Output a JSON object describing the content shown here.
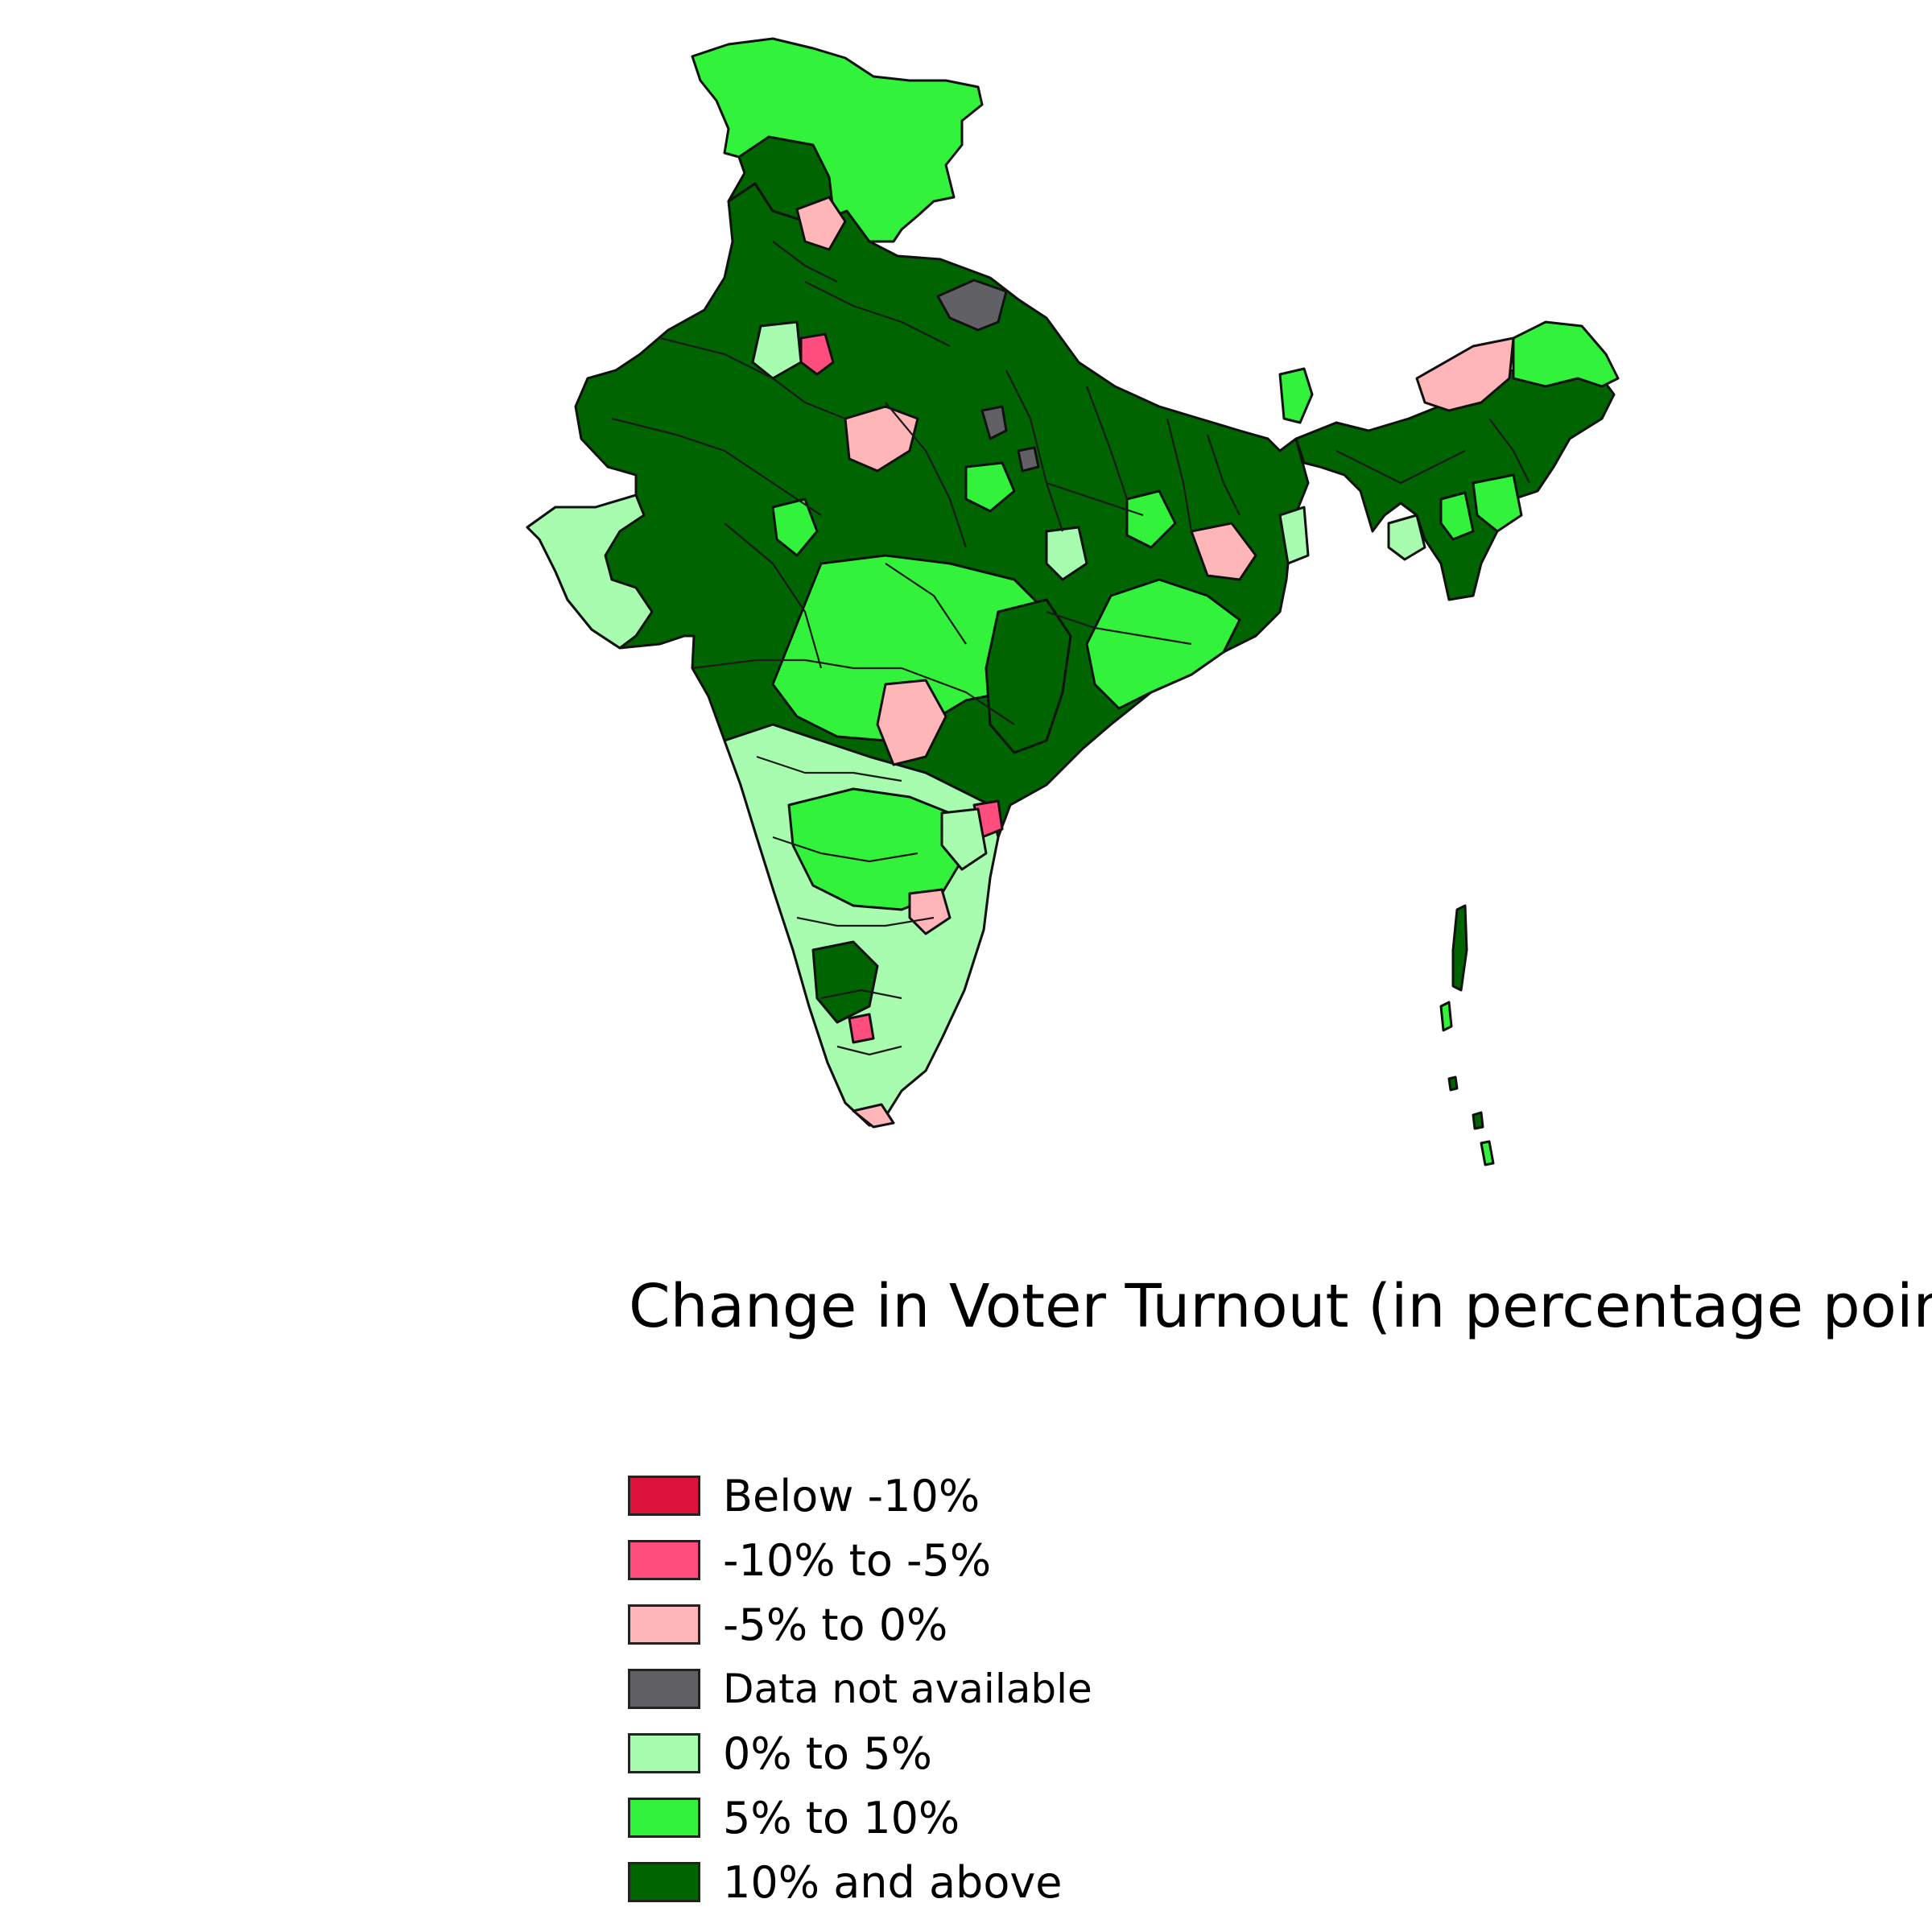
{
  "legend": {
    "title": "Change in Voter Turnout (in percentage points)",
    "items": [
      {
        "label": "Below -10%",
        "color": "#dc143c"
      },
      {
        "label": "-10% to -5%",
        "color": "#ff4d7d"
      },
      {
        "label": "-5% to 0%",
        "color": "#ffb6b9"
      },
      {
        "label": "Data not available",
        "color": "#616165"
      },
      {
        "label": "0% to 5%",
        "color": "#a8fcaf"
      },
      {
        "label": "5% to 10%",
        "color": "#33f23b"
      },
      {
        "label": "10% and above",
        "color": "#006400"
      }
    ]
  }
}
